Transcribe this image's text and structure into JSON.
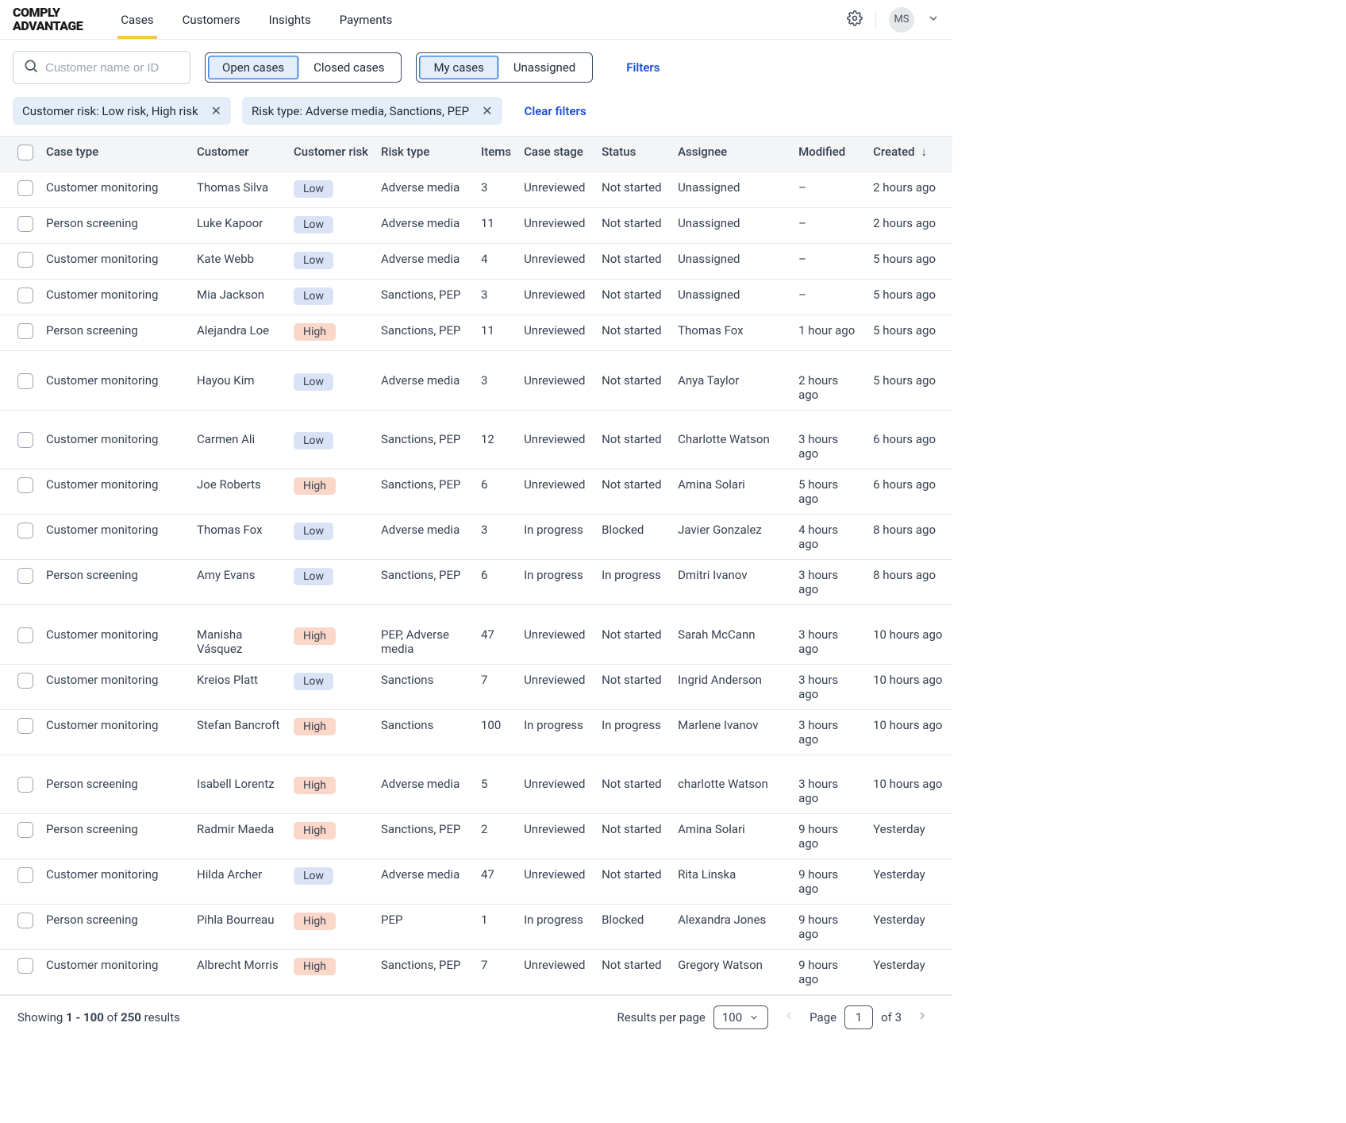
{
  "brand": {
    "line1": "COMPLY",
    "line2": "ADVANTAGE"
  },
  "nav": {
    "items": [
      {
        "label": "Cases",
        "active": true
      },
      {
        "label": "Customers",
        "active": false
      },
      {
        "label": "Insights",
        "active": false
      },
      {
        "label": "Payments",
        "active": false
      }
    ],
    "user_initials": "MS"
  },
  "search": {
    "placeholder": "Customer name or ID"
  },
  "segments": {
    "group1": [
      {
        "label": "Open cases",
        "active": true
      },
      {
        "label": "Closed cases",
        "active": false
      }
    ],
    "group2": [
      {
        "label": "My cases",
        "active": true
      },
      {
        "label": "Unassigned",
        "active": false
      }
    ]
  },
  "filters_label": "Filters",
  "chips": [
    {
      "label": "Customer risk: Low risk, High risk"
    },
    {
      "label": "Risk type: Adverse media, Sanctions, PEP"
    }
  ],
  "clear_filters_label": "Clear filters",
  "columns": {
    "case_type": "Case type",
    "customer": "Customer",
    "customer_risk": "Customer risk",
    "risk_type": "Risk type",
    "items": "Items",
    "case_stage": "Case stage",
    "status": "Status",
    "assignee": "Assignee",
    "modified": "Modified",
    "created": "Created"
  },
  "risk_colors": {
    "Low": "risk-low",
    "High": "risk-high"
  },
  "groups": [
    {
      "rows": [
        {
          "case_type": "Customer monitoring",
          "customer": "Thomas Silva",
          "risk": "Low",
          "risk_type": "Adverse media",
          "items": "3",
          "stage": "Unreviewed",
          "status": "Not started",
          "assignee": "Unassigned",
          "modified": "–",
          "created": "2 hours ago"
        },
        {
          "case_type": "Person screening",
          "customer": "Luke Kapoor",
          "risk": "Low",
          "risk_type": "Adverse media",
          "items": "11",
          "stage": "Unreviewed",
          "status": "Not started",
          "assignee": "Unassigned",
          "modified": "–",
          "created": "2 hours ago"
        },
        {
          "case_type": "Customer monitoring",
          "customer": "Kate Webb",
          "risk": "Low",
          "risk_type": "Adverse media",
          "items": "4",
          "stage": "Unreviewed",
          "status": "Not started",
          "assignee": "Unassigned",
          "modified": "–",
          "created": "5 hours ago"
        },
        {
          "case_type": "Customer monitoring",
          "customer": "Mia Jackson",
          "risk": "Low",
          "risk_type": "Sanctions, PEP",
          "items": "3",
          "stage": "Unreviewed",
          "status": "Not started",
          "assignee": "Unassigned",
          "modified": "–",
          "created": "5 hours ago"
        },
        {
          "case_type": "Person screening",
          "customer": "Alejandra Loe",
          "risk": "High",
          "risk_type": "Sanctions, PEP",
          "items": "11",
          "stage": "Unreviewed",
          "status": "Not started",
          "assignee": "Thomas Fox",
          "modified": "1 hour ago",
          "created": "5 hours ago"
        }
      ]
    },
    {
      "rows": [
        {
          "case_type": "Customer monitoring",
          "customer": "Hayou Kim",
          "risk": "Low",
          "risk_type": "Adverse media",
          "items": "3",
          "stage": "Unreviewed",
          "status": "Not started",
          "assignee": "Anya Taylor",
          "modified": "2 hours ago",
          "created": "5 hours ago"
        }
      ]
    },
    {
      "rows": [
        {
          "case_type": "Customer monitoring",
          "customer": "Carmen Ali",
          "risk": "Low",
          "risk_type": "Sanctions, PEP",
          "items": "12",
          "stage": "Unreviewed",
          "status": "Not started",
          "assignee": "Charlotte Watson",
          "modified": "3 hours ago",
          "created": "6 hours ago"
        },
        {
          "case_type": "Customer monitoring",
          "customer": "Joe Roberts",
          "risk": "High",
          "risk_type": "Sanctions, PEP",
          "items": "6",
          "stage": "Unreviewed",
          "status": "Not started",
          "assignee": "Amina Solari",
          "modified": "5 hours ago",
          "created": "6 hours ago"
        },
        {
          "case_type": "Customer monitoring",
          "customer": "Thomas Fox",
          "risk": "Low",
          "risk_type": "Adverse media",
          "items": "3",
          "stage": "In progress",
          "status": "Blocked",
          "assignee": "Javier Gonzalez",
          "modified": "4 hours ago",
          "created": "8 hours ago"
        },
        {
          "case_type": "Person screening",
          "customer": "Amy Evans",
          "risk": "Low",
          "risk_type": "Sanctions, PEP",
          "items": "6",
          "stage": "In progress",
          "status": "In progress",
          "assignee": "Dmitri Ivanov",
          "modified": "3 hours ago",
          "created": "8 hours ago"
        }
      ]
    },
    {
      "rows": [
        {
          "case_type": "Customer monitoring",
          "customer": "Manisha Vásquez",
          "risk": "High",
          "risk_type": "PEP, Adverse media",
          "items": "47",
          "stage": "Unreviewed",
          "status": "Not started",
          "assignee": "Sarah McCann",
          "modified": "3 hours ago",
          "created": "10 hours ago"
        },
        {
          "case_type": "Customer monitoring",
          "customer": "Kreios Platt",
          "risk": "Low",
          "risk_type": "Sanctions",
          "items": "7",
          "stage": "Unreviewed",
          "status": "Not started",
          "assignee": "Ingrid Anderson",
          "modified": "3 hours ago",
          "created": "10 hours ago"
        },
        {
          "case_type": "Customer monitoring",
          "customer": "Stefan Bancroft",
          "risk": "High",
          "risk_type": "Sanctions",
          "items": "100",
          "stage": "In progress",
          "status": "In progress",
          "assignee": "Marlene Ivanov",
          "modified": "3 hours ago",
          "created": "10 hours ago"
        }
      ]
    },
    {
      "rows": [
        {
          "case_type": "Person screening",
          "customer": "Isabell Lorentz",
          "risk": "High",
          "risk_type": "Adverse media",
          "items": "5",
          "stage": "Unreviewed",
          "status": "Not started",
          "assignee": "charlotte Watson",
          "modified": "3 hours ago",
          "created": "10 hours ago"
        },
        {
          "case_type": "Person screening",
          "customer": "Radmir Maeda",
          "risk": "High",
          "risk_type": "Sanctions, PEP",
          "items": "2",
          "stage": "Unreviewed",
          "status": "Not started",
          "assignee": "Amina Solari",
          "modified": "9 hours ago",
          "created": "Yesterday"
        },
        {
          "case_type": "Customer monitoring",
          "customer": "Hilda Archer",
          "risk": "Low",
          "risk_type": "Adverse media",
          "items": "47",
          "stage": "Unreviewed",
          "status": "Not started",
          "assignee": "Rita Linska",
          "modified": "9 hours ago",
          "created": "Yesterday"
        },
        {
          "case_type": "Person screening",
          "customer": "Pihla Bourreau",
          "risk": "High",
          "risk_type": "PEP",
          "items": "1",
          "stage": "In progress",
          "status": "Blocked",
          "assignee": "Alexandra Jones",
          "modified": "9 hours ago",
          "created": "Yesterday"
        },
        {
          "case_type": "Customer monitoring",
          "customer": "Albrecht Morris",
          "risk": "High",
          "risk_type": "Sanctions, PEP",
          "items": "7",
          "stage": "Unreviewed",
          "status": "Not started",
          "assignee": "Gregory Watson",
          "modified": "9 hours ago",
          "created": "Yesterday"
        }
      ]
    }
  ],
  "footer": {
    "showing_prefix": "Showing ",
    "range": "1 - 100",
    "of": " of ",
    "total": "250",
    "results_suffix": " results",
    "rpp_label": "Results per page",
    "rpp_value": "100",
    "page_label": "Page",
    "page_value": "1",
    "page_of": "of 3"
  }
}
